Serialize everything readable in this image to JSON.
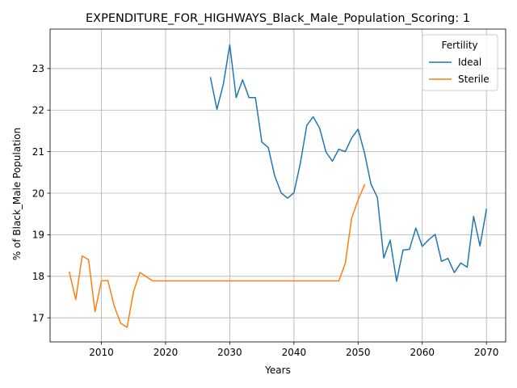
{
  "chart_data": {
    "type": "line",
    "title": "EXPENDITURE_FOR_HIGHWAYS_Black_Male_Population_Scoring: 1",
    "xlabel": "Years",
    "ylabel": "% of Black_Male Population",
    "xlim": [
      2002,
      2073
    ],
    "ylim": [
      16.42,
      23.95
    ],
    "xticks": [
      2010,
      2020,
      2030,
      2040,
      2050,
      2060,
      2070
    ],
    "yticks": [
      17,
      18,
      19,
      20,
      21,
      22,
      23
    ],
    "grid": true,
    "legend": {
      "title": "Fertility",
      "placement": "top-right"
    },
    "series": [
      {
        "name": "Ideal",
        "color": "#1f77b4",
        "points": [
          [
            2027,
            22.78
          ],
          [
            2028,
            22.02
          ],
          [
            2029,
            22.62
          ],
          [
            2030,
            23.57
          ],
          [
            2031,
            22.3
          ],
          [
            2032,
            22.73
          ],
          [
            2033,
            22.3
          ],
          [
            2034,
            22.3
          ],
          [
            2035,
            21.23
          ],
          [
            2036,
            21.1
          ],
          [
            2037,
            20.42
          ],
          [
            2038,
            20.01
          ],
          [
            2039,
            19.88
          ],
          [
            2040,
            20.01
          ],
          [
            2041,
            20.72
          ],
          [
            2042,
            21.63
          ],
          [
            2043,
            21.84
          ],
          [
            2044,
            21.57
          ],
          [
            2045,
            20.99
          ],
          [
            2046,
            20.77
          ],
          [
            2047,
            21.06
          ],
          [
            2048,
            21.0
          ],
          [
            2049,
            21.33
          ],
          [
            2050,
            21.54
          ],
          [
            2051,
            20.97
          ],
          [
            2052,
            20.22
          ],
          [
            2053,
            19.9
          ],
          [
            2054,
            18.44
          ],
          [
            2055,
            18.87
          ],
          [
            2056,
            17.88
          ],
          [
            2057,
            18.63
          ],
          [
            2058,
            18.65
          ],
          [
            2059,
            19.16
          ],
          [
            2060,
            18.72
          ],
          [
            2061,
            18.88
          ],
          [
            2062,
            19.01
          ],
          [
            2063,
            18.36
          ],
          [
            2064,
            18.43
          ],
          [
            2065,
            18.09
          ],
          [
            2066,
            18.32
          ],
          [
            2067,
            18.22
          ],
          [
            2068,
            19.44
          ],
          [
            2069,
            18.73
          ],
          [
            2070,
            19.61
          ]
        ]
      },
      {
        "name": "Sterile",
        "color": "#ff7f0e",
        "points": [
          [
            2005,
            18.1
          ],
          [
            2006,
            17.44
          ],
          [
            2007,
            18.49
          ],
          [
            2008,
            18.4
          ],
          [
            2009,
            17.15
          ],
          [
            2010,
            17.89
          ],
          [
            2011,
            17.9
          ],
          [
            2012,
            17.28
          ],
          [
            2013,
            16.87
          ],
          [
            2014,
            16.77
          ],
          [
            2015,
            17.63
          ],
          [
            2016,
            18.09
          ],
          [
            2017,
            17.99
          ],
          [
            2018,
            17.89
          ],
          [
            2019,
            17.89
          ],
          [
            2020,
            17.89
          ],
          [
            2021,
            17.89
          ],
          [
            2022,
            17.89
          ],
          [
            2023,
            17.89
          ],
          [
            2024,
            17.89
          ],
          [
            2025,
            17.89
          ],
          [
            2026,
            17.89
          ],
          [
            2027,
            17.89
          ],
          [
            2028,
            17.89
          ],
          [
            2029,
            17.89
          ],
          [
            2030,
            17.89
          ],
          [
            2031,
            17.89
          ],
          [
            2032,
            17.89
          ],
          [
            2033,
            17.89
          ],
          [
            2034,
            17.89
          ],
          [
            2035,
            17.89
          ],
          [
            2036,
            17.89
          ],
          [
            2037,
            17.89
          ],
          [
            2038,
            17.89
          ],
          [
            2039,
            17.89
          ],
          [
            2040,
            17.89
          ],
          [
            2041,
            17.89
          ],
          [
            2042,
            17.89
          ],
          [
            2043,
            17.89
          ],
          [
            2044,
            17.89
          ],
          [
            2045,
            17.89
          ],
          [
            2046,
            17.89
          ],
          [
            2047,
            17.89
          ],
          [
            2048,
            18.31
          ],
          [
            2049,
            19.4
          ],
          [
            2050,
            19.84
          ],
          [
            2051,
            20.2
          ]
        ]
      }
    ]
  }
}
